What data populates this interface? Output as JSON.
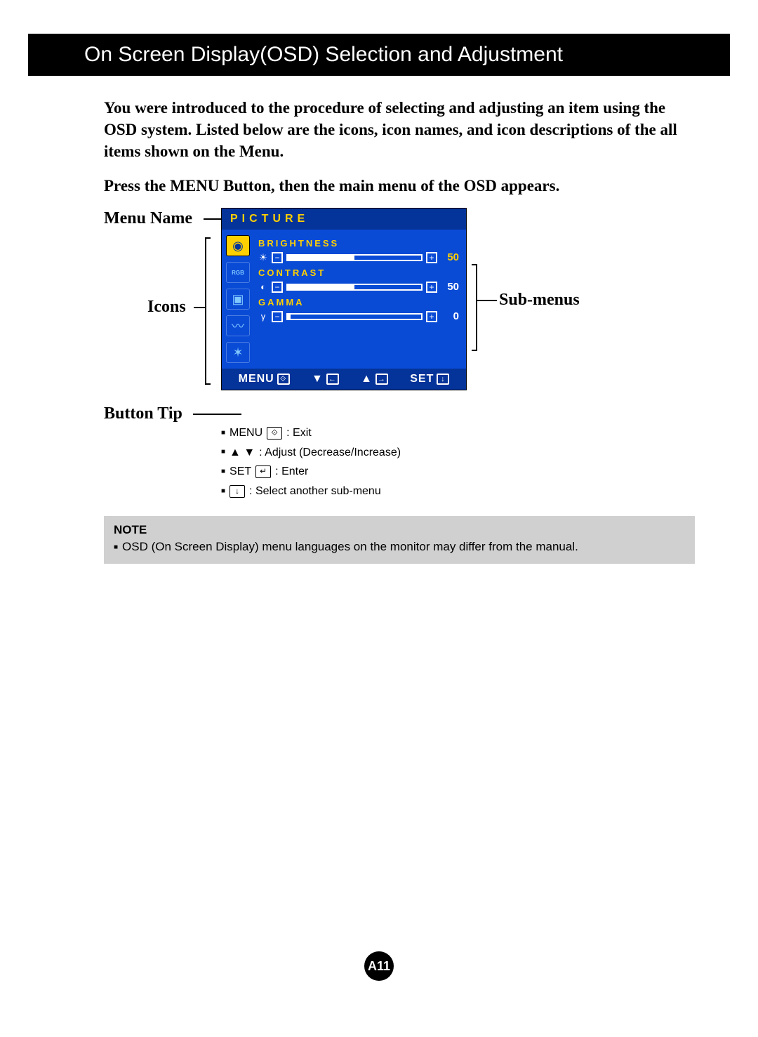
{
  "header": {
    "title": "On Screen Display(OSD) Selection and Adjustment"
  },
  "intro": {
    "p1": "You were introduced to the procedure of selecting and adjusting an item using the OSD system.  Listed below are the icons, icon names, and icon descriptions of the all items shown on the Menu.",
    "p2": "Press the MENU Button, then the main menu of the OSD appears."
  },
  "labels": {
    "menu_name": "Menu Name",
    "icons": "Icons",
    "button_tip": "Button Tip",
    "sub_menus": "Sub-menus"
  },
  "osd": {
    "title": "PICTURE",
    "icons": [
      {
        "name": "sun-icon",
        "glyph": "◉",
        "selected": true
      },
      {
        "name": "rgb-icon",
        "glyph": "RGB",
        "selected": false
      },
      {
        "name": "screen-icon",
        "glyph": "▣",
        "selected": false
      },
      {
        "name": "wave-icon",
        "glyph": "〰",
        "selected": false
      },
      {
        "name": "gear-icon",
        "glyph": "✶",
        "selected": false
      }
    ],
    "sliders": [
      {
        "label": "BRIGHTNESS",
        "icon": "☀",
        "value": 50,
        "pct": 50,
        "label_color": "yellow",
        "val_color": "yellow"
      },
      {
        "label": "CONTRAST",
        "icon": "◐",
        "value": 50,
        "pct": 50,
        "label_color": "yellow",
        "val_color": "white"
      },
      {
        "label": "GAMMA",
        "icon": "γ",
        "value": 0,
        "pct": 2,
        "label_color": "yellow",
        "val_color": "white"
      }
    ],
    "buttons": {
      "menu": "MENU",
      "menu_icon": "⟐",
      "down": "▼",
      "down_box": "←",
      "up": "▲",
      "up_box": "→",
      "set": "SET",
      "set_icon": "↓"
    }
  },
  "legend": {
    "rows": [
      {
        "pre": "MENU",
        "box": "⟐",
        "post": ": Exit"
      },
      {
        "pre": "▲ ▼",
        "box": "",
        "post": ": Adjust (Decrease/Increase)"
      },
      {
        "pre": "SET",
        "box": "↵",
        "post": ": Enter"
      },
      {
        "pre": "",
        "box": "↓",
        "post": ": Select another sub-menu"
      }
    ]
  },
  "note": {
    "title": "NOTE",
    "text": "OSD (On Screen Display) menu languages on the monitor may differ from the manual."
  },
  "page": {
    "number": "A11"
  },
  "colors": {
    "osd_bg": "#0a4bd6",
    "osd_dark": "#043399",
    "accent": "#ffd000",
    "note_bg": "#d0d0d0"
  }
}
